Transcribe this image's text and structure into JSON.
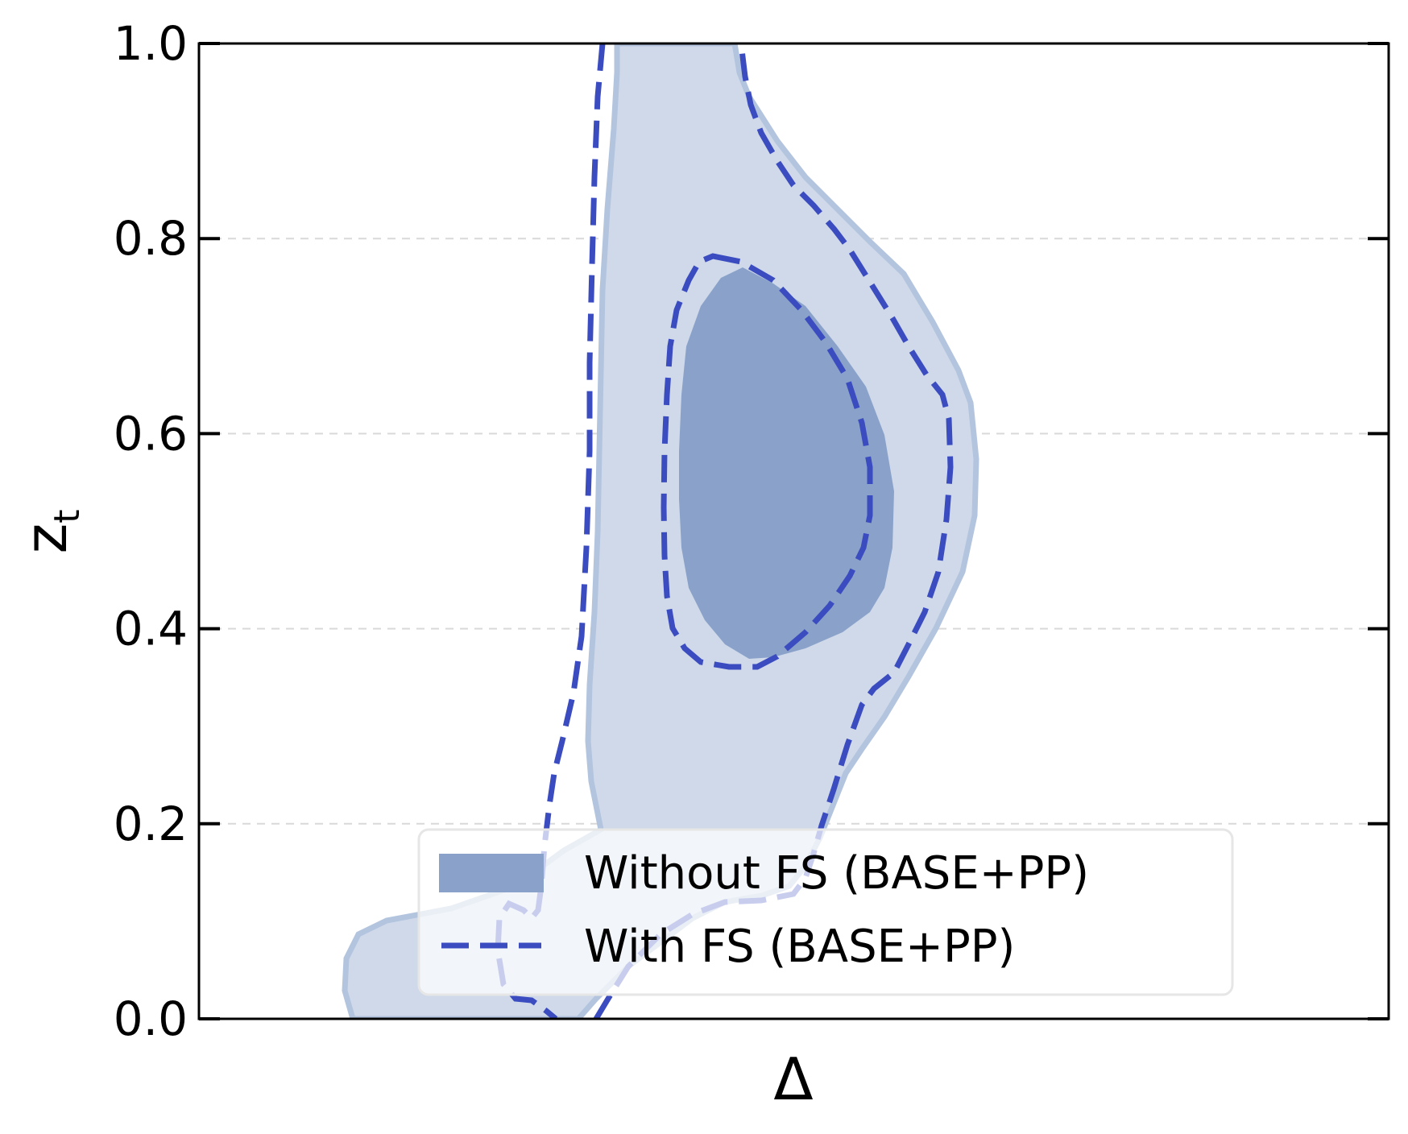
{
  "chart_data": {
    "type": "contour",
    "xlabel": "Δ",
    "ylabel": "z",
    "ylabel_subscript": "t",
    "ylim": [
      0.0,
      1.0
    ],
    "yticks": [
      "0.0",
      "0.2",
      "0.4",
      "0.6",
      "0.8",
      "1.0"
    ],
    "ytick_values": [
      0.0,
      0.2,
      0.4,
      0.6,
      0.8,
      1.0
    ],
    "xticks": [],
    "grid": "horizontal-dashed",
    "legend_position": "lower-center",
    "series": [
      {
        "name": "Without FS (BASE+PP)",
        "style": "filled",
        "color_inner": "#8aa2c9",
        "color_outer": "#cfd9ea",
        "edge_color": "#b3c4de"
      },
      {
        "name": "With FS (BASE+PP)",
        "style": "dashed",
        "color": "#3b4cc0"
      }
    ]
  }
}
